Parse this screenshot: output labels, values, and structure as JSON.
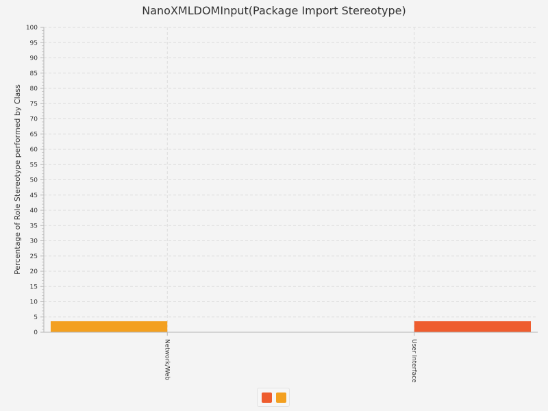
{
  "chart_data": {
    "type": "bar",
    "title": "NanoXMLDOMInput(Package Import Stereotype)",
    "xlabel": "",
    "ylabel": "Percentage of Role Stereotype performed by Class",
    "ylim": [
      0,
      100
    ],
    "ytick_step": 5,
    "grid": true,
    "categories": [
      "Network/Web",
      "User Interface"
    ],
    "series": [
      {
        "values": [
          3.6,
          0
        ],
        "color": "#f3a020"
      },
      {
        "values": [
          0,
          3.6
        ],
        "color": "#ee5c2e"
      }
    ],
    "legend": {
      "placement": "bottom",
      "entries": [
        {
          "color": "#ee5c2e"
        },
        {
          "color": "#f3a020"
        }
      ]
    }
  }
}
